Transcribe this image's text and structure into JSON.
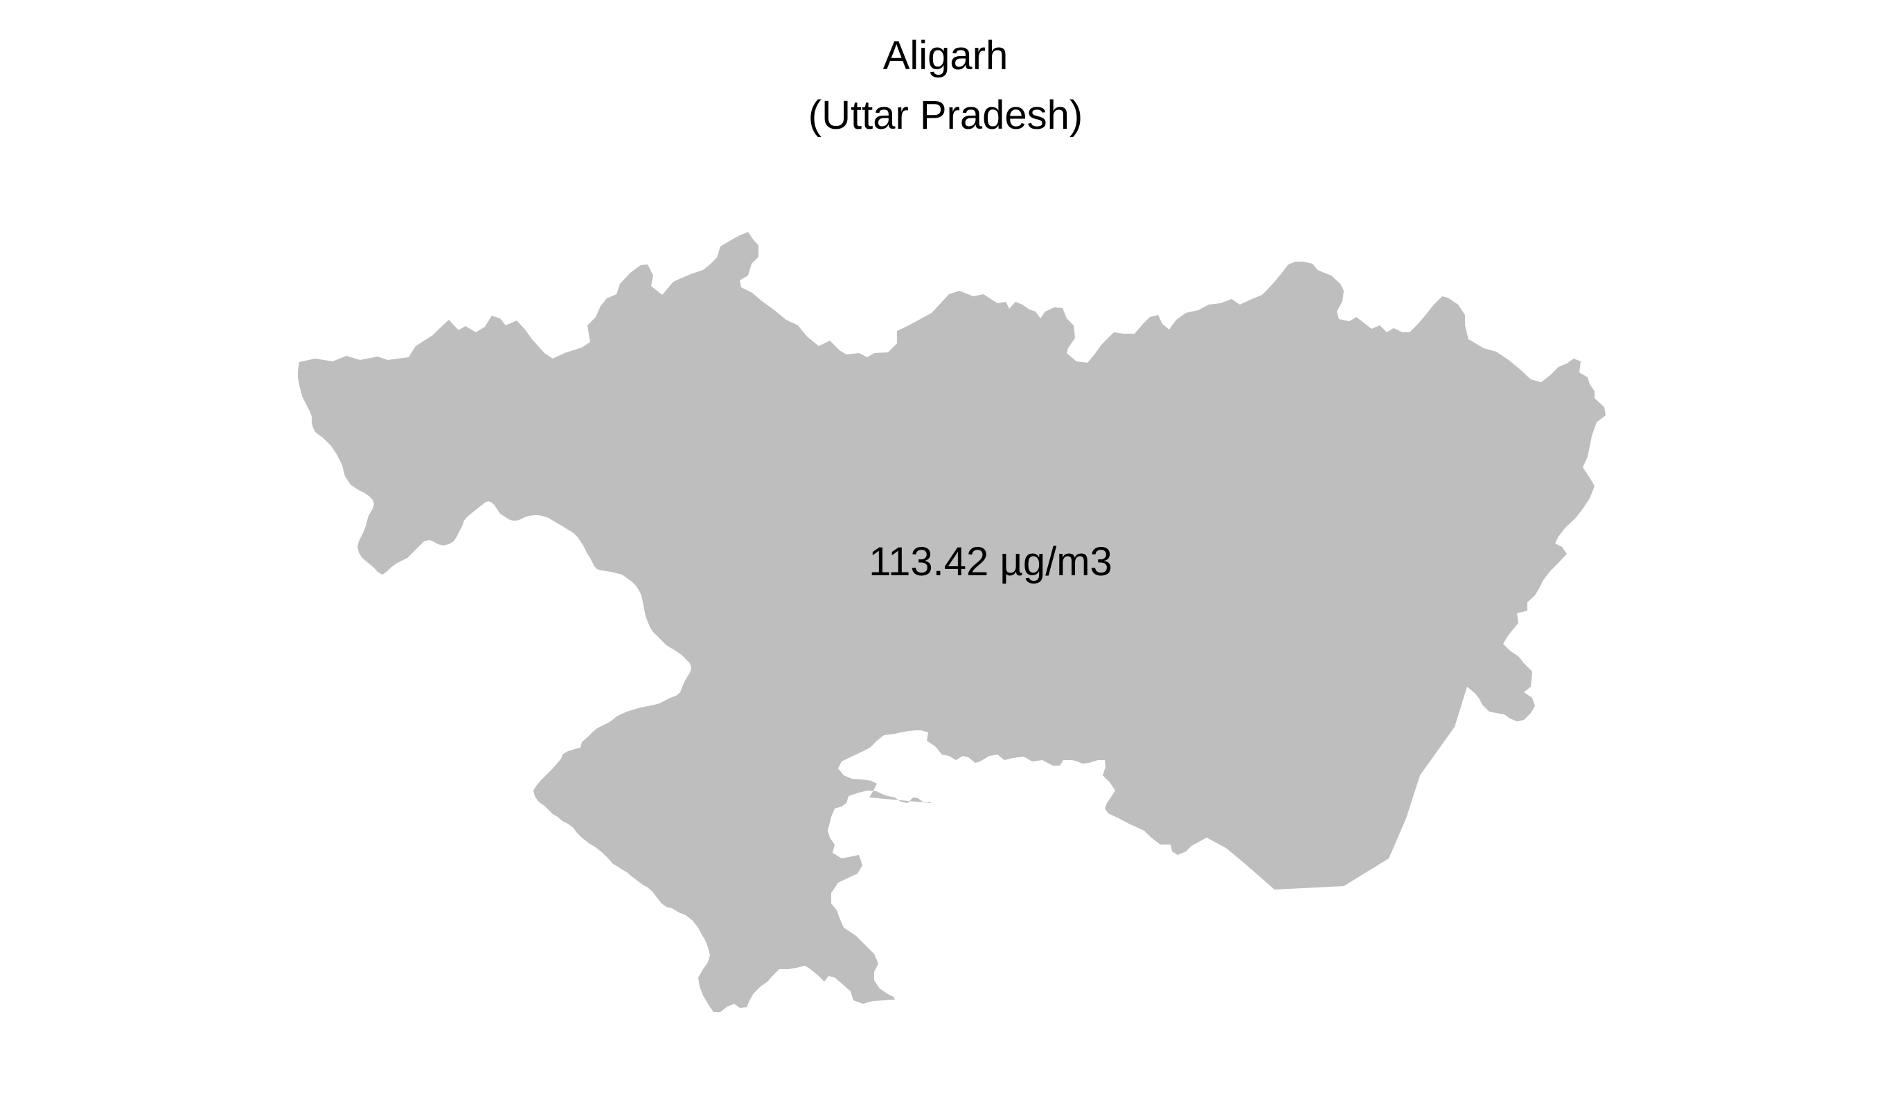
{
  "map": {
    "title": "Aligarh",
    "subtitle": "(Uttar Pradesh)",
    "value_label": "113.42 µg/m3",
    "region_fill": "#bebebe",
    "background": "#ffffff"
  }
}
